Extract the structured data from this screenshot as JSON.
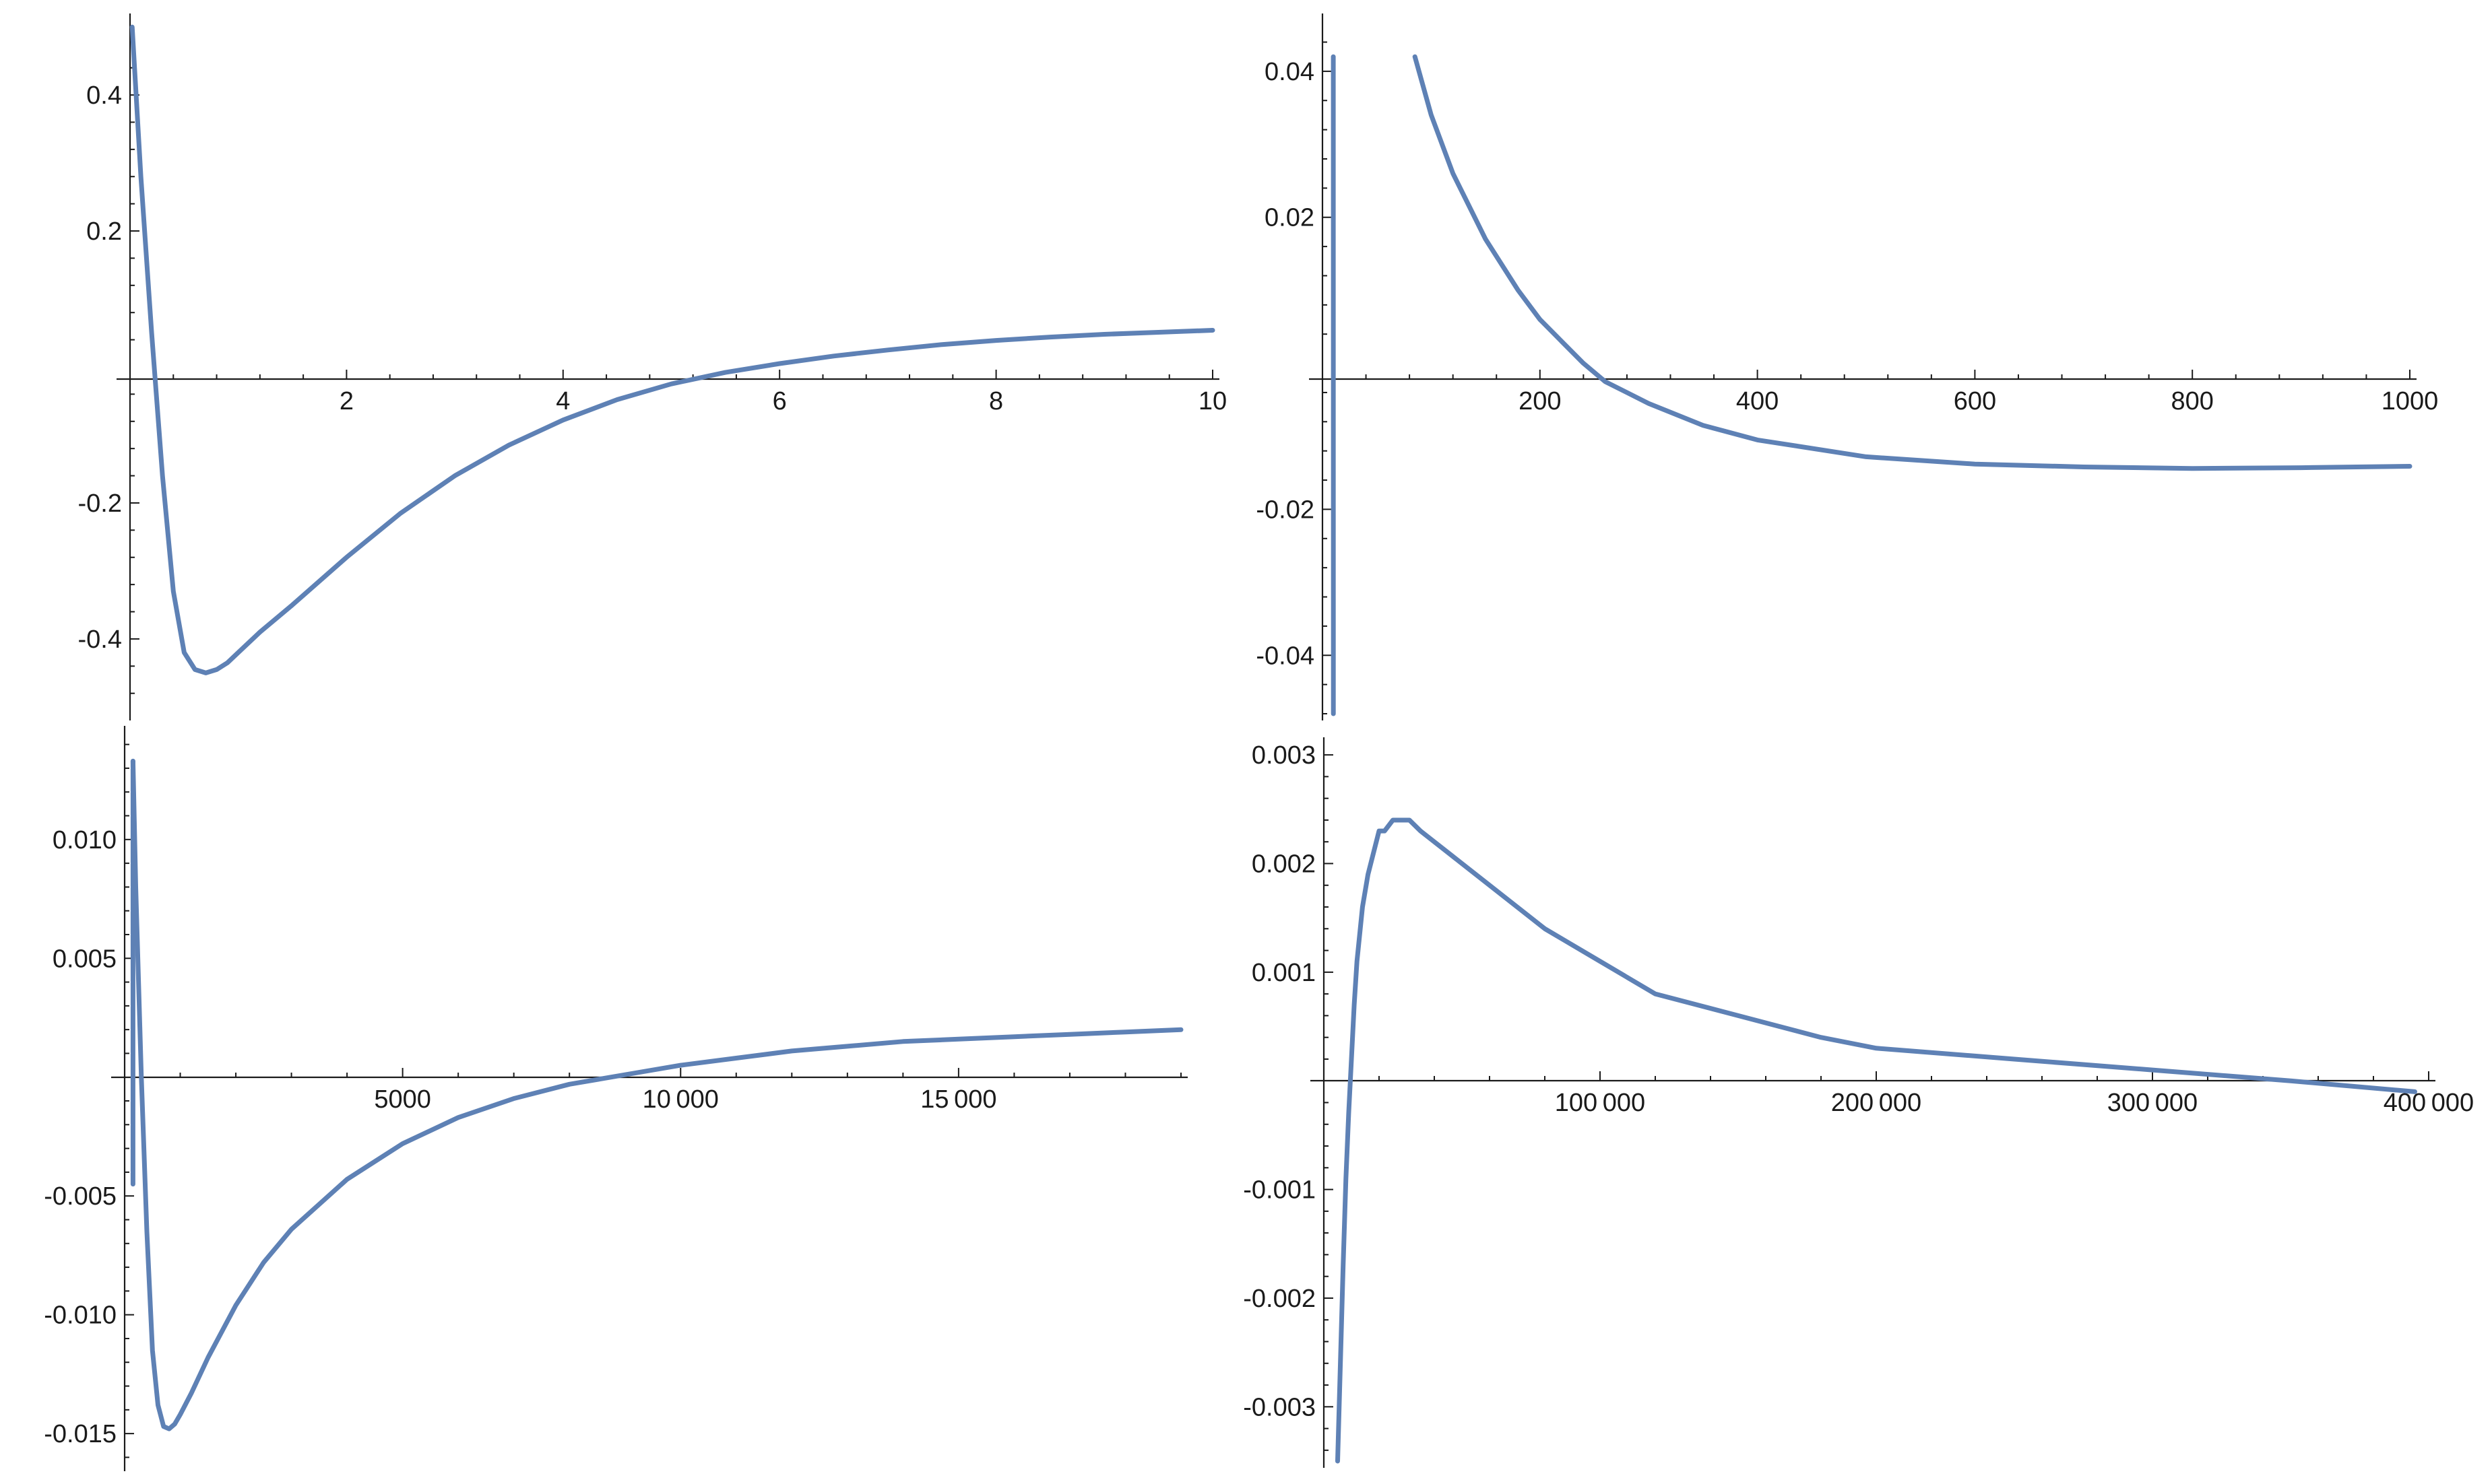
{
  "chart_data": [
    {
      "type": "line",
      "xlim": [
        0,
        10
      ],
      "ylim": [
        -0.51,
        0.51
      ],
      "x_ticks": [
        2,
        4,
        6,
        8,
        10
      ],
      "x_tick_labels": [
        "2",
        "4",
        "6",
        "8",
        "10"
      ],
      "y_ticks": [
        -0.4,
        -0.2,
        0.2,
        0.4
      ],
      "y_tick_labels": [
        "-0.4",
        "-0.2",
        "0.2",
        "0.4"
      ],
      "grid": false,
      "series": [
        {
          "color": "#5e81b5",
          "x": [
            0.02,
            0.1,
            0.2,
            0.3,
            0.4,
            0.5,
            0.6,
            0.7,
            0.8,
            0.9,
            1.0,
            1.2,
            1.5,
            2.0,
            2.5,
            3.0,
            3.5,
            4.0,
            4.5,
            5.0,
            5.5,
            6.0,
            6.5,
            7.0,
            7.5,
            8.0,
            8.5,
            9.0,
            9.5,
            10.0
          ],
          "y": [
            0.5,
            0.28,
            0.05,
            -0.16,
            -0.33,
            -0.42,
            -0.445,
            -0.45,
            -0.445,
            -0.435,
            -0.42,
            -0.39,
            -0.35,
            -0.28,
            -0.215,
            -0.16,
            -0.115,
            -0.078,
            -0.048,
            -0.025,
            -0.008,
            0.005,
            0.016,
            0.025,
            0.033,
            0.039,
            0.044,
            0.048,
            0.051,
            0.054
          ]
        }
      ]
    },
    {
      "type": "line",
      "xlim": [
        0,
        1000
      ],
      "ylim": [
        -0.048,
        0.047
      ],
      "x_ticks": [
        200,
        400,
        600,
        800,
        1000
      ],
      "x_tick_labels": [
        "200",
        "400",
        "600",
        "800",
        "1000"
      ],
      "y_ticks": [
        -0.04,
        -0.02,
        0.02,
        0.04
      ],
      "y_tick_labels": [
        "-0.04",
        "-0.02",
        "0.02",
        "0.04"
      ],
      "grid": false,
      "series": [
        {
          "color": "#5e81b5",
          "x": [
            10,
            10.01
          ],
          "y": [
            0.042,
            -0.048
          ]
        },
        {
          "color": "#5e81b5",
          "x": [
            85,
            100,
            120,
            150,
            180,
            200,
            220,
            240,
            260,
            300,
            350,
            400,
            500,
            600,
            700,
            800,
            900,
            1000
          ],
          "y": [
            0.042,
            0.034,
            0.026,
            0.017,
            0.01,
            0.006,
            0.003,
            0.0,
            -0.0025,
            -0.0055,
            -0.0085,
            -0.0105,
            -0.0128,
            -0.0138,
            -0.0142,
            -0.0144,
            -0.0143,
            -0.0141
          ]
        }
      ]
    },
    {
      "type": "line",
      "xlim": [
        0,
        19000
      ],
      "ylim": [
        -0.0163,
        0.0145
      ],
      "x_ticks": [
        5000,
        10000,
        15000
      ],
      "x_tick_labels": [
        "5000",
        "10 000",
        "15 000"
      ],
      "y_ticks": [
        -0.015,
        -0.01,
        -0.005,
        0.005,
        0.01
      ],
      "y_tick_labels": [
        "-0.015",
        "-0.010",
        "-0.005",
        "0.005",
        "0.010"
      ],
      "grid": false,
      "series": [
        {
          "color": "#5e81b5",
          "x": [
            150,
            150.01
          ],
          "y": [
            0.0133,
            -0.0045
          ]
        },
        {
          "color": "#5e81b5",
          "x": [
            150,
            200,
            300,
            400,
            500,
            600,
            700,
            800,
            900,
            1000,
            1200,
            1500,
            2000,
            2500,
            3000,
            4000,
            5000,
            6000,
            7000,
            8000,
            9000,
            10000,
            11000,
            12000,
            13000,
            14000,
            15000,
            16000,
            17000,
            18000,
            19000
          ],
          "y": [
            0.0133,
            0.008,
            0.0,
            -0.0065,
            -0.0115,
            -0.0138,
            -0.0147,
            -0.0148,
            -0.0146,
            -0.0142,
            -0.0133,
            -0.0118,
            -0.0096,
            -0.0078,
            -0.0064,
            -0.0043,
            -0.0028,
            -0.0017,
            -0.0009,
            -0.0003,
            0.0001,
            0.0005,
            0.0008,
            0.0011,
            0.0013,
            0.0015,
            0.0016,
            0.0017,
            0.0018,
            0.0019,
            0.002
          ]
        }
      ]
    },
    {
      "type": "line",
      "xlim": [
        0,
        400000
      ],
      "ylim": [
        -0.0035,
        0.0031
      ],
      "x_ticks": [
        100000,
        200000,
        300000,
        400000
      ],
      "x_tick_labels": [
        "100 000",
        "200 000",
        "300 000",
        "400 000"
      ],
      "y_ticks": [
        -0.003,
        -0.002,
        -0.001,
        0.001,
        0.002,
        0.003
      ],
      "y_tick_labels": [
        "-0.003",
        "-0.002",
        "-0.001",
        "0.001",
        "0.002",
        "0.003"
      ],
      "grid": false,
      "series": [
        {
          "color": "#5e81b5",
          "x": [
            5000,
            6000,
            7000,
            8000,
            9000,
            10000,
            11000,
            12000,
            14000,
            16000,
            18000,
            20000,
            22000,
            25000,
            28000,
            31000,
            35000,
            40000,
            50000,
            60000,
            80000,
            100000,
            120000,
            150000,
            180000,
            200000,
            250000,
            300000,
            350000,
            395000
          ],
          "y": [
            -0.0035,
            -0.0026,
            -0.0017,
            -0.0009,
            -0.0003,
            0.0002,
            0.0007,
            0.0011,
            0.0016,
            0.0019,
            0.0021,
            0.0023,
            0.0023,
            0.0024,
            0.0024,
            0.0024,
            0.0023,
            0.0022,
            0.002,
            0.0018,
            0.0014,
            0.0011,
            0.0008,
            0.0006,
            0.0004,
            0.0003,
            0.0002,
            0.0001,
            0.0,
            -0.0001
          ]
        }
      ]
    }
  ]
}
